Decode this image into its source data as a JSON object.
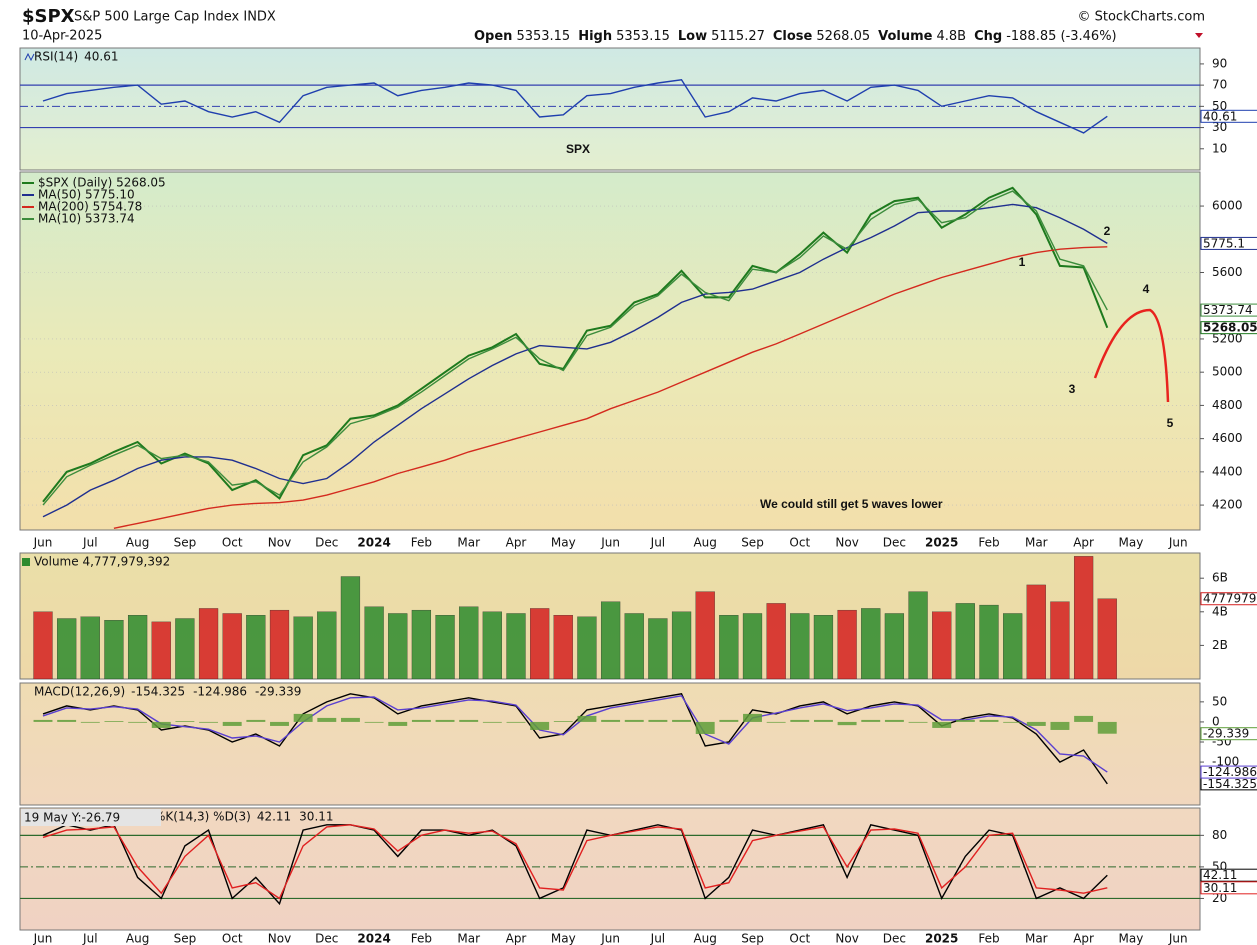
{
  "header": {
    "symbol": "$SPX",
    "name": "S&P 500 Large Cap Index INDX",
    "source": "© StockCharts.com",
    "date": "10-Apr-2025",
    "quote": [
      {
        "label": "Open",
        "value": "5353.15"
      },
      {
        "label": "High",
        "value": "5353.15"
      },
      {
        "label": "Low",
        "value": "5115.27"
      },
      {
        "label": "Close",
        "value": "5268.05"
      },
      {
        "label": "Volume",
        "value": "4.8B"
      },
      {
        "label": "Chg",
        "value": "-188.85 (-3.46%)"
      }
    ]
  },
  "chart_data": [
    {
      "type": "line",
      "label": "RSI(14)",
      "ylim": [
        -10,
        105
      ],
      "yticks": [
        90,
        70,
        50,
        30,
        10
      ],
      "reference_lines": [
        70,
        30
      ],
      "dashed_lines": [
        50
      ],
      "annotations": [
        {
          "text": "SPX",
          "color": "#e8231e"
        }
      ],
      "series": [
        {
          "color": "#1f3fae",
          "tag": true,
          "values": [
            55,
            62,
            65,
            68,
            70,
            52,
            55,
            45,
            40,
            45,
            35,
            60,
            68,
            70,
            72,
            60,
            65,
            68,
            72,
            70,
            65,
            40,
            42,
            60,
            62,
            68,
            72,
            75,
            40,
            45,
            58,
            55,
            62,
            65,
            55,
            68,
            70,
            65,
            50,
            55,
            60,
            58,
            45,
            35,
            25,
            40.61,
            null,
            null,
            null
          ]
        }
      ]
    },
    {
      "type": "line",
      "ylim": [
        4050,
        6205
      ],
      "yticks": [
        6000,
        5600,
        5200,
        5000,
        4800,
        4600,
        4400,
        4200
      ],
      "grid": true,
      "categories": [
        "Jun",
        null,
        "Jul",
        null,
        "Aug",
        null,
        "Sep",
        null,
        "Oct",
        null,
        "Nov",
        null,
        "Dec",
        null,
        "2024",
        null,
        "Feb",
        null,
        "Mar",
        null,
        "Apr",
        null,
        "May",
        null,
        "Jun",
        null,
        "Jul",
        null,
        "Aug",
        null,
        "Sep",
        null,
        "Oct",
        null,
        "Nov",
        null,
        "Dec",
        null,
        "2025",
        null,
        "Feb",
        null,
        "Mar",
        null,
        "Apr",
        null,
        "May",
        null,
        "Jun"
      ],
      "annotations": [
        {
          "text": "1",
          "color": "#ff33cc"
        },
        {
          "text": "2",
          "color": "#ff33cc"
        },
        {
          "text": "3",
          "color": "#ff33cc"
        },
        {
          "text": "4",
          "color": "#ff33cc"
        },
        {
          "text": "5",
          "color": "#ff33cc"
        },
        {
          "text": "We could still get 5 waves lower",
          "color": "#9b30ff"
        }
      ],
      "series": [
        {
          "name": "$SPX (Daily) 5268.05",
          "color": "#1e7a1e",
          "tag": true,
          "values": [
            4220,
            4400,
            4450,
            4520,
            4580,
            4450,
            4510,
            4450,
            4290,
            4350,
            4240,
            4500,
            4560,
            4720,
            4740,
            4800,
            4900,
            5000,
            5100,
            5150,
            5230,
            5050,
            5020,
            5250,
            5280,
            5420,
            5470,
            5610,
            5450,
            5450,
            5640,
            5600,
            5710,
            5840,
            5720,
            5950,
            6030,
            6050,
            5870,
            5950,
            6050,
            6110,
            5950,
            5640,
            5630,
            5268.05,
            null,
            null,
            null
          ]
        },
        {
          "name": "MA(50) 5775.10",
          "color": "#1f2f8f",
          "tag": true,
          "values": [
            4130,
            4200,
            4290,
            4350,
            4420,
            4470,
            4490,
            4490,
            4470,
            4420,
            4360,
            4330,
            4360,
            4460,
            4580,
            4680,
            4780,
            4870,
            4960,
            5040,
            5110,
            5160,
            5150,
            5140,
            5180,
            5250,
            5330,
            5420,
            5470,
            5480,
            5500,
            5550,
            5600,
            5680,
            5750,
            5810,
            5880,
            5960,
            5970,
            5970,
            5990,
            6010,
            5990,
            5930,
            5860,
            5775.1,
            null,
            null,
            null
          ]
        },
        {
          "name": "MA(200) 5754.78",
          "color": "#d42a1e",
          "tag": false,
          "values": [
            null,
            null,
            null,
            4060,
            4090,
            4120,
            4150,
            4180,
            4200,
            4210,
            4215,
            4230,
            4260,
            4300,
            4340,
            4390,
            4430,
            4470,
            4520,
            4560,
            4600,
            4640,
            4680,
            4720,
            4780,
            4830,
            4880,
            4940,
            5000,
            5060,
            5120,
            5170,
            5230,
            5290,
            5350,
            5410,
            5470,
            5520,
            5570,
            5610,
            5650,
            5690,
            5720,
            5740,
            5750,
            5754.78,
            null,
            null,
            null
          ]
        },
        {
          "name": "MA(10) 5373.74",
          "color": "#3c8c3c",
          "tag": true,
          "values": [
            4200,
            4370,
            4440,
            4500,
            4560,
            4480,
            4500,
            4460,
            4320,
            4340,
            4260,
            4460,
            4550,
            4690,
            4730,
            4790,
            4880,
            4980,
            5080,
            5140,
            5210,
            5080,
            5010,
            5220,
            5270,
            5400,
            5460,
            5590,
            5480,
            5430,
            5620,
            5600,
            5690,
            5820,
            5740,
            5920,
            6010,
            6040,
            5900,
            5930,
            6030,
            6090,
            5970,
            5680,
            5640,
            5373.74,
            null,
            null,
            null
          ]
        }
      ]
    },
    {
      "type": "bar",
      "label": "Volume 4,777,979,392",
      "ylim": [
        0,
        7500000000
      ],
      "yticks": [
        {
          "value": 6000000000,
          "label": "6B"
        },
        {
          "value": 4000000000,
          "label": "4B"
        },
        {
          "value": 2000000000,
          "label": "2B"
        }
      ],
      "up_color": "#2e8b2e",
      "down_color": "#d42020",
      "series": [
        {
          "color": "#d42020",
          "tag": true,
          "values": [
            4000000000,
            3600000000,
            3700000000,
            3500000000,
            3800000000,
            3400000000,
            3600000000,
            4200000000,
            3900000000,
            3800000000,
            4100000000,
            3700000000,
            4000000000,
            6100000000,
            4300000000,
            3900000000,
            4100000000,
            3800000000,
            4300000000,
            4000000000,
            3900000000,
            4200000000,
            3800000000,
            3700000000,
            4600000000,
            3900000000,
            3600000000,
            4000000000,
            5200000000,
            3800000000,
            3900000000,
            4500000000,
            3900000000,
            3800000000,
            4100000000,
            4200000000,
            3900000000,
            5200000000,
            4000000000,
            4500000000,
            4400000000,
            3900000000,
            5600000000,
            4600000000,
            7300000000,
            4777979392,
            null,
            null,
            null
          ]
        }
      ]
    },
    {
      "type": "line",
      "label": "MACD(12,26,9)",
      "inline_values": true,
      "ylim": [
        -207,
        97
      ],
      "yticks": [
        50,
        0,
        -50,
        -100
      ],
      "series": [
        {
          "color": "#000000",
          "tag": true,
          "values": [
            20,
            40,
            30,
            40,
            30,
            -20,
            -10,
            -20,
            -50,
            -30,
            -60,
            20,
            50,
            70,
            60,
            20,
            40,
            50,
            60,
            50,
            40,
            -40,
            -30,
            30,
            40,
            50,
            60,
            70,
            -60,
            -50,
            30,
            20,
            40,
            50,
            20,
            40,
            50,
            40,
            -10,
            10,
            20,
            10,
            -30,
            -100,
            -70,
            -154.325,
            null,
            null,
            null
          ]
        },
        {
          "color": "#5a3fd0",
          "tag": true,
          "values": [
            15,
            35,
            32,
            38,
            32,
            -5,
            -12,
            -18,
            -40,
            -35,
            -50,
            0,
            40,
            60,
            62,
            30,
            35,
            45,
            55,
            52,
            42,
            -20,
            -32,
            15,
            35,
            45,
            55,
            65,
            -30,
            -55,
            10,
            22,
            35,
            45,
            28,
            35,
            45,
            42,
            5,
            5,
            15,
            12,
            -20,
            -80,
            -85,
            -124.986,
            null,
            null,
            null
          ]
        },
        {
          "type": "bar",
          "color": "#5f9e3a",
          "tag": true,
          "values": [
            5,
            5,
            -2,
            2,
            -2,
            -15,
            2,
            -2,
            -10,
            5,
            -10,
            20,
            10,
            10,
            -2,
            -10,
            5,
            5,
            5,
            -2,
            -2,
            -20,
            2,
            15,
            5,
            5,
            5,
            5,
            -30,
            5,
            20,
            -2,
            5,
            5,
            -8,
            5,
            5,
            -2,
            -15,
            5,
            5,
            -2,
            -10,
            -20,
            15,
            -29.339,
            null,
            null,
            null
          ]
        }
      ]
    },
    {
      "type": "line",
      "label": "%K(14,3) %D(3)",
      "inline_values": true,
      "tooltip": "19 May Y:-26.79",
      "ylim": [
        -10,
        106
      ],
      "yticks": [
        80,
        50,
        20
      ],
      "reference_lines": [
        80,
        20
      ],
      "dashed_lines": [
        50
      ],
      "series": [
        {
          "color": "#000000",
          "tag": true,
          "values": [
            80,
            90,
            85,
            90,
            40,
            20,
            70,
            85,
            20,
            40,
            15,
            85,
            90,
            90,
            85,
            60,
            85,
            85,
            80,
            85,
            70,
            20,
            30,
            85,
            80,
            85,
            90,
            85,
            20,
            40,
            85,
            80,
            85,
            90,
            40,
            90,
            85,
            80,
            20,
            60,
            85,
            80,
            20,
            30,
            20,
            42.11,
            null,
            null,
            null
          ]
        },
        {
          "color": "#e02020",
          "tag": true,
          "values": [
            78,
            85,
            86,
            88,
            50,
            25,
            60,
            80,
            30,
            35,
            20,
            70,
            88,
            90,
            86,
            65,
            80,
            85,
            82,
            84,
            72,
            30,
            28,
            75,
            80,
            84,
            88,
            86,
            30,
            35,
            75,
            80,
            84,
            88,
            50,
            85,
            86,
            82,
            30,
            50,
            80,
            82,
            30,
            28,
            25,
            30.11,
            null,
            null,
            null
          ]
        }
      ]
    }
  ]
}
